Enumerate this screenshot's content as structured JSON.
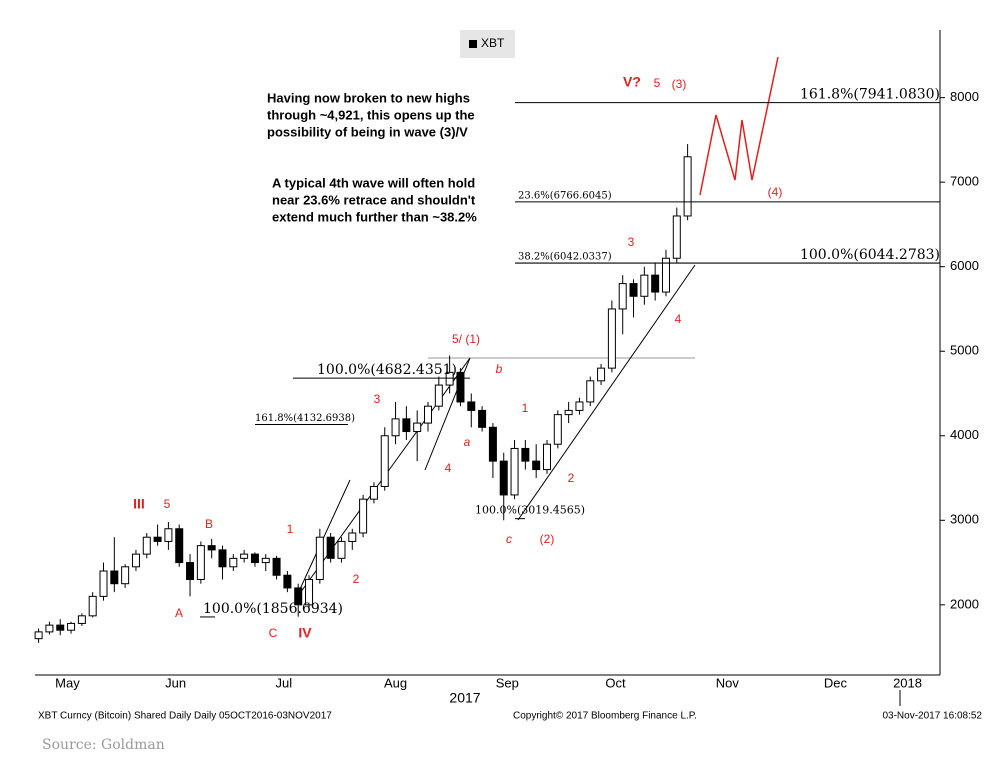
{
  "chart_data": {
    "type": "candlestick",
    "series": [
      {
        "name": "XBT",
        "up_color": "#ffffff",
        "down_color": "#000000",
        "edge_color": "#000000",
        "x": [
          128,
          131,
          134,
          137,
          140,
          143,
          146,
          149,
          152,
          155,
          158,
          161,
          164,
          167,
          170,
          173,
          176,
          179,
          182,
          185,
          188,
          191,
          194,
          197,
          200,
          203,
          206,
          209,
          212,
          215,
          218,
          221,
          224,
          227,
          230,
          233,
          236,
          239,
          242,
          245,
          248,
          251,
          254,
          257,
          260,
          263,
          266,
          269,
          272,
          275,
          278,
          281,
          284,
          287,
          290,
          293,
          296,
          299,
          302,
          305,
          308
        ],
        "open": [
          1600,
          1680,
          1760,
          1700,
          1780,
          1870,
          2100,
          2400,
          2250,
          2450,
          2600,
          2800,
          2750,
          2900,
          2500,
          2300,
          2700,
          2650,
          2450,
          2550,
          2600,
          2500,
          2550,
          2350,
          2200,
          2000,
          2300,
          2800,
          2550,
          2750,
          2850,
          3250,
          3400,
          4000,
          4200,
          4050,
          4150,
          4350,
          4600,
          4750,
          4400,
          4300,
          4100,
          3700,
          3300,
          3850,
          3700,
          3600,
          3900,
          4250,
          4300,
          4400,
          4650,
          4800,
          5500,
          5800,
          5650,
          5900,
          5700,
          6100,
          6600
        ],
        "high": [
          1720,
          1800,
          1830,
          1800,
          1900,
          2150,
          2500,
          2800,
          2480,
          2650,
          2850,
          2950,
          2980,
          2950,
          2600,
          2750,
          2780,
          2700,
          2600,
          2650,
          2620,
          2600,
          2580,
          2400,
          2250,
          2350,
          2900,
          2850,
          2800,
          2900,
          3300,
          3450,
          4100,
          4400,
          4350,
          4300,
          4400,
          4700,
          4950,
          4800,
          4500,
          4350,
          4150,
          3800,
          3950,
          3950,
          3900,
          3950,
          4300,
          4400,
          4450,
          4700,
          4850,
          5600,
          5900,
          5850,
          6000,
          6050,
          6200,
          6700,
          7450
        ],
        "low": [
          1550,
          1650,
          1640,
          1660,
          1750,
          1850,
          2050,
          2150,
          2200,
          2400,
          2550,
          2700,
          2650,
          2450,
          2100,
          2250,
          2550,
          2300,
          2400,
          2500,
          2450,
          2400,
          2300,
          2150,
          1860,
          1950,
          2250,
          2500,
          2500,
          2650,
          2800,
          3200,
          3350,
          3900,
          3950,
          3700,
          4050,
          4300,
          4500,
          4350,
          4100,
          4050,
          3500,
          3000,
          3250,
          3600,
          3500,
          3550,
          3850,
          4150,
          4250,
          4350,
          4600,
          4750,
          5200,
          5400,
          5550,
          5600,
          5650,
          6050,
          6550
        ],
        "close": [
          1680,
          1760,
          1700,
          1780,
          1870,
          2100,
          2400,
          2250,
          2450,
          2600,
          2800,
          2750,
          2900,
          2500,
          2300,
          2700,
          2650,
          2450,
          2550,
          2600,
          2500,
          2550,
          2350,
          2200,
          2000,
          2300,
          2800,
          2550,
          2750,
          2850,
          3250,
          3400,
          4000,
          4200,
          4050,
          4150,
          4350,
          4600,
          4750,
          4400,
          4300,
          4100,
          3700,
          3300,
          3850,
          3700,
          3600,
          3900,
          4250,
          4300,
          4400,
          4650,
          4800,
          5500,
          5800,
          5650,
          5900,
          5700,
          6100,
          6600,
          7300
        ]
      }
    ],
    "xlim": [
      127,
      378
    ],
    "xticks": [
      {
        "value": 136,
        "label": "May"
      },
      {
        "value": 166,
        "label": "Jun"
      },
      {
        "value": 196,
        "label": "Jul"
      },
      {
        "value": 227,
        "label": "Aug"
      },
      {
        "value": 258,
        "label": "Sep"
      },
      {
        "value": 288,
        "label": "Oct"
      },
      {
        "value": 319,
        "label": "Nov"
      },
      {
        "value": 349,
        "label": "Dec"
      },
      {
        "value": 369,
        "label": "2018"
      }
    ],
    "ylim": [
      1170,
      8800
    ],
    "yticks": [
      2000,
      3000,
      4000,
      5000,
      6000,
      7000,
      8000
    ],
    "y_axis_side": "right",
    "grid": false,
    "x_axis_year": "2017",
    "fib_levels": [
      {
        "label": "161.8%(7941.0830)",
        "value": 7941.083
      },
      {
        "label": "23.6%(6766.6045)",
        "value": 6766.6045
      },
      {
        "label": "100.0%(6044.2783)",
        "value": 6044.2783
      },
      {
        "label": "38.2%(6042.0337)",
        "value": 6042.0337
      },
      {
        "label": "100.0%(4682.4351)",
        "value": 4682.4351
      },
      {
        "label": "161.8%(4132.6938)",
        "value": 4132.6938
      },
      {
        "label": "100.0%(3019.4565)",
        "value": 3019.4565
      },
      {
        "label": "100.0%(1856.6934)",
        "value": 1856.6934
      }
    ],
    "wave_labels": [
      "V?",
      "5",
      "(3)",
      "(4)",
      "3",
      "4",
      "5/ (1)",
      "b",
      "3",
      "1",
      "a",
      "4",
      "2",
      "c",
      "(2)",
      "III",
      "5",
      "B",
      "1",
      "A",
      "2",
      "C",
      "IV"
    ],
    "notes": [
      "Having now broken to new highs",
      "through ~4,921, this opens up the",
      "possibility of being in wave (3)/V",
      "A typical 4th wave will often hold",
      "near 23.6% retrace and shouldn't",
      "extend much further than ~38.2%"
    ],
    "footer_left": "XBT Curncy (Bitcoin) Shared Daily  Daily 05OCT2016-03NOV2017",
    "footer_center": "Copyright© 2017 Bloomberg Finance L.P.",
    "footer_right": "03-Nov-2017 16:08:52",
    "source": "Source: Goldman"
  }
}
